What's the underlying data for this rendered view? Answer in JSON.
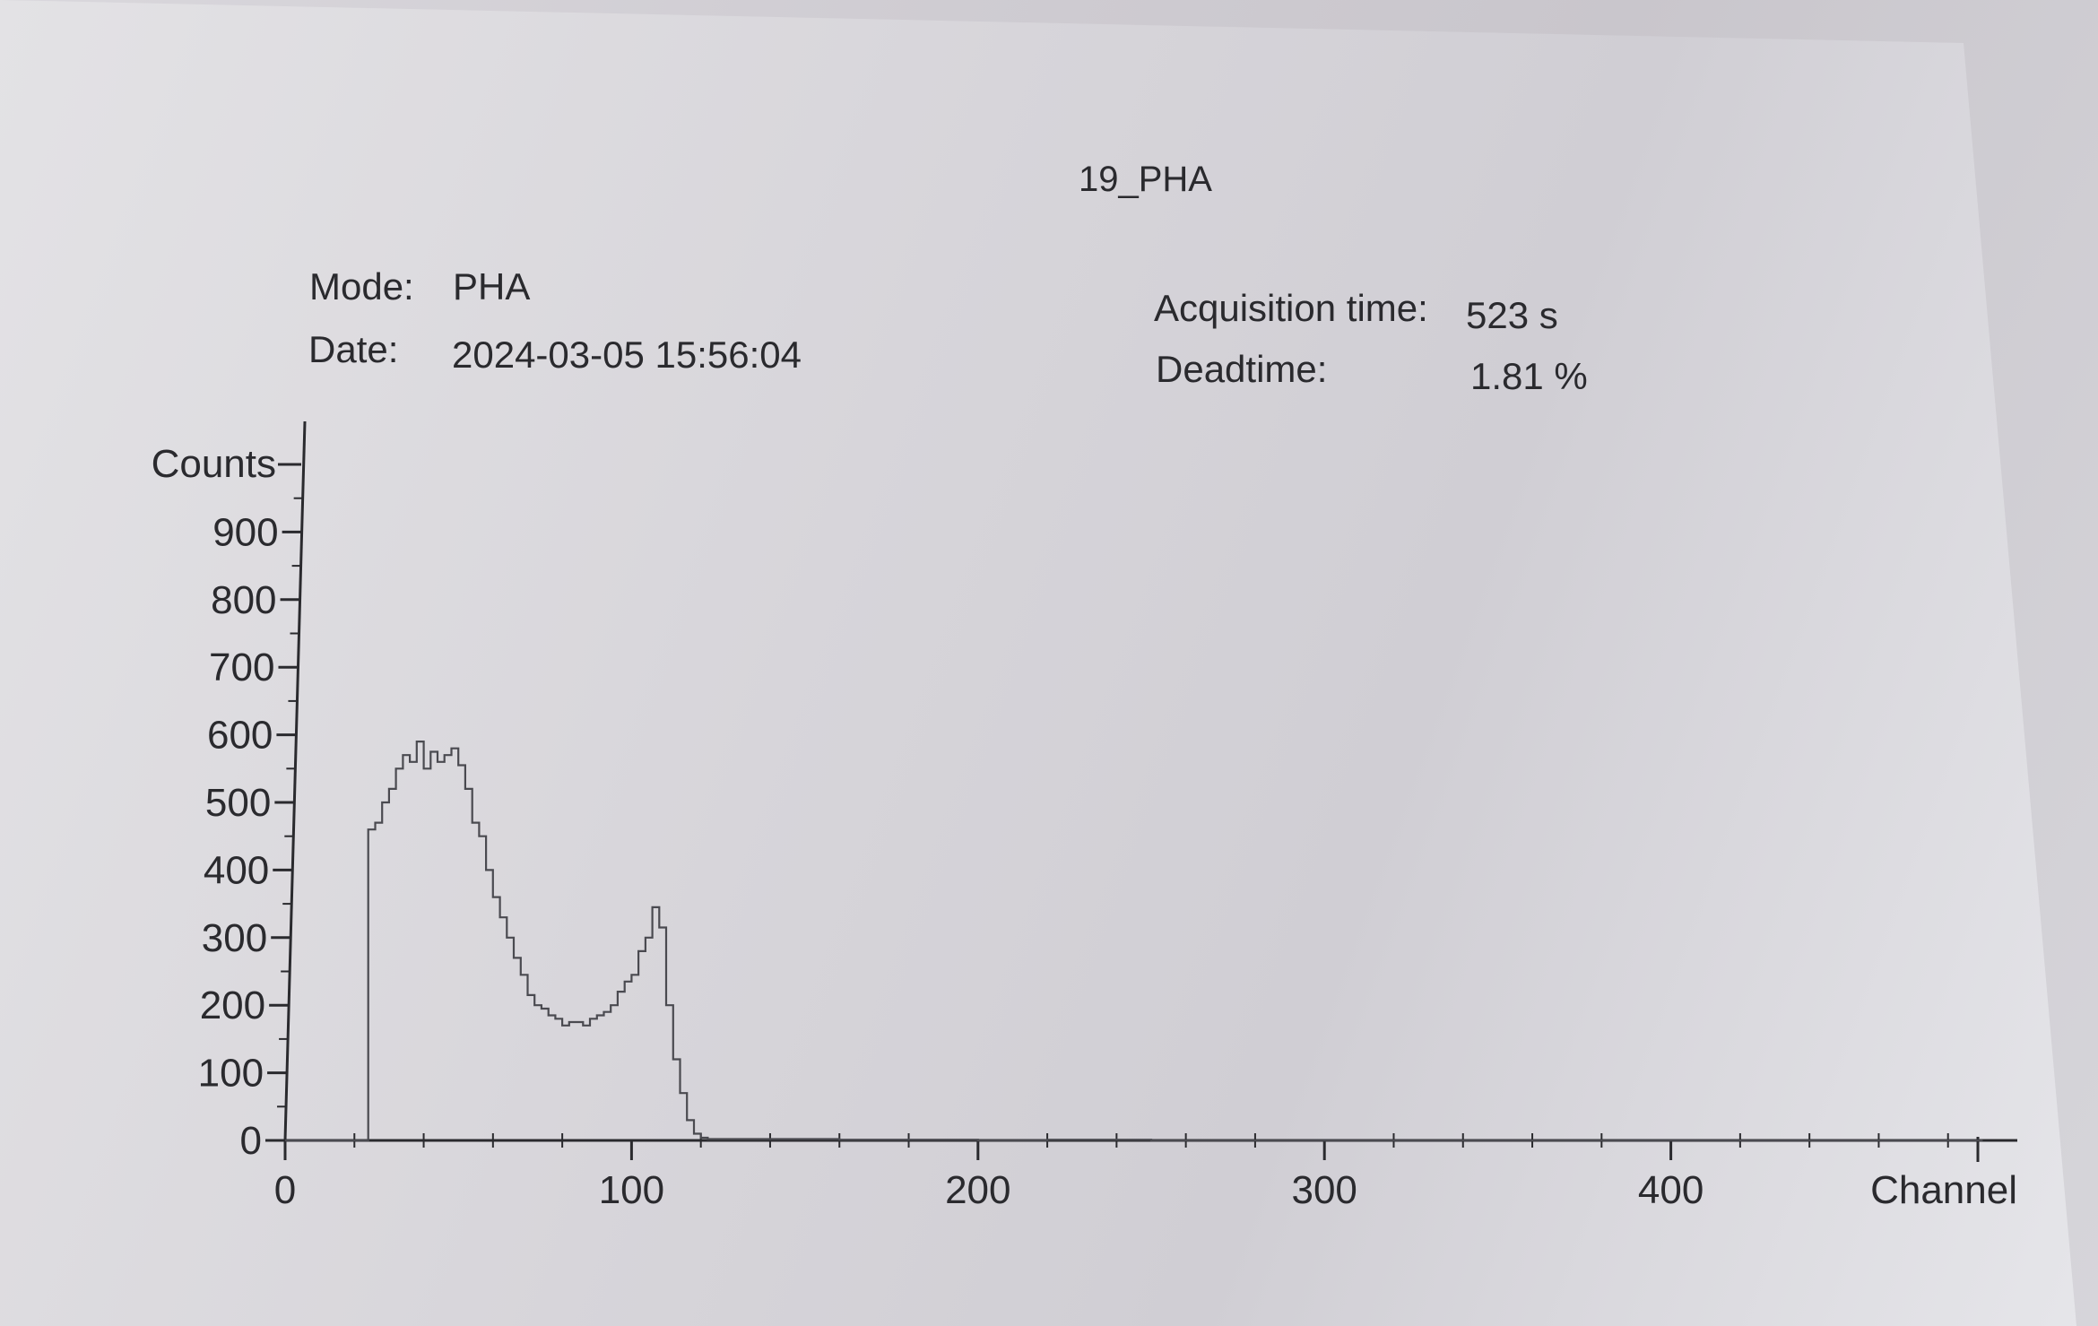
{
  "title": "19_PHA",
  "info": {
    "mode_label": "Mode:",
    "mode_value": "PHA",
    "date_label": "Date:",
    "date_value": "2024-03-05 15:56:04",
    "acquisition_label": "Acquisition time:",
    "acquisition_value": "523 s",
    "deadtime_label": "Deadtime:",
    "deadtime_value": "1.81 %"
  },
  "colors": {
    "ink": "#2a2a2e",
    "histogram": "#4a4a50"
  },
  "chart_data": {
    "type": "line",
    "title": "19_PHA",
    "xlabel": "Channel",
    "ylabel": "Counts",
    "xlim": [
      0,
      500
    ],
    "ylim": [
      0,
      1000
    ],
    "x_ticks": [
      0,
      100,
      200,
      300,
      400
    ],
    "y_ticks": [
      0,
      100,
      200,
      300,
      400,
      500,
      600,
      700,
      800,
      900
    ],
    "grid": false,
    "series": [
      {
        "style": "step",
        "x": [
          0,
          22,
          24,
          26,
          28,
          30,
          32,
          34,
          36,
          38,
          40,
          42,
          44,
          46,
          48,
          50,
          52,
          54,
          56,
          58,
          60,
          62,
          64,
          66,
          68,
          70,
          72,
          74,
          76,
          78,
          80,
          82,
          84,
          86,
          88,
          90,
          92,
          94,
          96,
          98,
          100,
          102,
          104,
          106,
          108,
          110,
          112,
          114,
          116,
          118,
          120,
          122,
          124,
          130,
          140,
          150,
          160,
          170,
          180,
          200,
          220,
          250,
          300,
          350,
          400,
          450,
          490
        ],
        "y": [
          0,
          0,
          460,
          470,
          500,
          520,
          550,
          570,
          560,
          590,
          550,
          575,
          560,
          570,
          580,
          555,
          520,
          470,
          450,
          400,
          360,
          330,
          300,
          270,
          245,
          215,
          200,
          195,
          185,
          180,
          170,
          175,
          175,
          170,
          180,
          185,
          190,
          200,
          220,
          235,
          245,
          280,
          300,
          345,
          315,
          200,
          120,
          70,
          30,
          10,
          4,
          2,
          2,
          2,
          2,
          2,
          1,
          1,
          1,
          0,
          1,
          0,
          0,
          0,
          0,
          0,
          0
        ]
      }
    ]
  }
}
